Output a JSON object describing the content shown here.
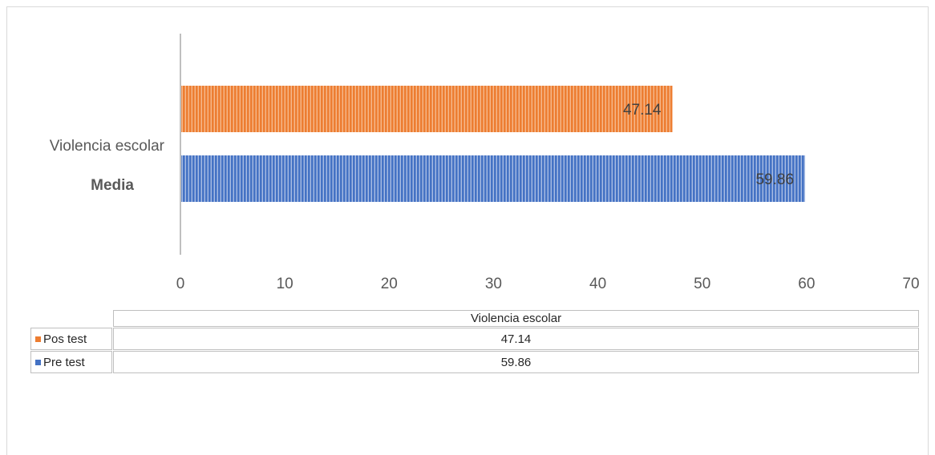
{
  "chart_data": {
    "type": "bar",
    "orientation": "horizontal",
    "category_lines": [
      "Violencia escolar",
      "Media"
    ],
    "series": [
      {
        "name": "Pos test",
        "value": 47.14,
        "label": "47.14",
        "color": "#ed7d31"
      },
      {
        "name": "Pre test",
        "value": 59.86,
        "label": "59.86",
        "color": "#4472c4"
      }
    ],
    "x_ticks": [
      "0",
      "10",
      "20",
      "30",
      "40",
      "50",
      "60",
      "70"
    ],
    "xlim": [
      0,
      70
    ],
    "grid": false,
    "legend": "data-table"
  },
  "data_table": {
    "header": "Violencia escolar",
    "rows": [
      {
        "label": "Pos test",
        "value": "47.14",
        "color": "#ed7d31"
      },
      {
        "label": "Pre test",
        "value": "59.86",
        "color": "#4472c4"
      }
    ]
  }
}
